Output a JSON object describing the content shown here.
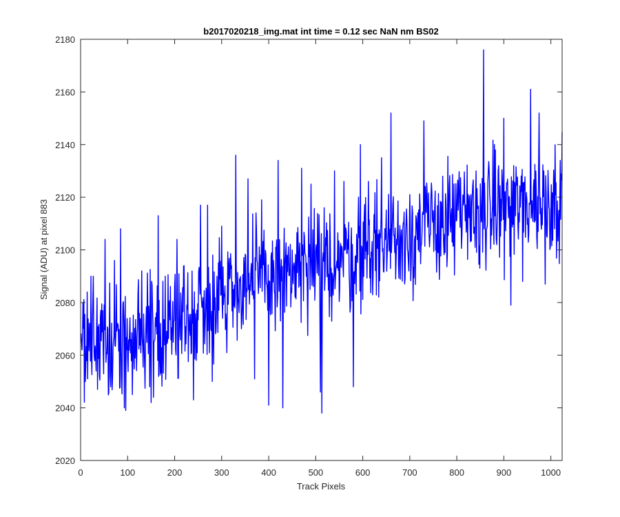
{
  "chart_data": {
    "type": "line",
    "title": "b2017020218_img.mat int time = 0.12 sec  NaN nm BS02",
    "xlabel": "Track Pixels",
    "ylabel": "Signal (ADU) at pixel 883",
    "xlim": [
      0,
      1024
    ],
    "ylim": [
      2020,
      2180
    ],
    "xticks": [
      0,
      100,
      200,
      300,
      400,
      500,
      600,
      700,
      800,
      900,
      1000
    ],
    "yticks": [
      2020,
      2040,
      2060,
      2080,
      2100,
      2120,
      2140,
      2160,
      2180
    ],
    "xtick_labels": [
      "0",
      "100",
      "200",
      "300",
      "400",
      "500",
      "600",
      "700",
      "800",
      "900",
      "1000"
    ],
    "ytick_labels": [
      "2020",
      "2040",
      "2060",
      "2080",
      "2100",
      "2120",
      "2140",
      "2160",
      "2180"
    ],
    "grid": false,
    "line_color": "#0000ff",
    "series": [
      {
        "x_start": 1,
        "x_step": 1,
        "count": 1024,
        "trend": [
          [
            1,
            2065
          ],
          [
            100,
            2066
          ],
          [
            200,
            2071
          ],
          [
            300,
            2084
          ],
          [
            400,
            2090
          ],
          [
            500,
            2092
          ],
          [
            600,
            2100
          ],
          [
            700,
            2106
          ],
          [
            800,
            2112
          ],
          [
            900,
            2116
          ],
          [
            1024,
            2120
          ]
        ],
        "noise_amplitude": 12,
        "spikes": [
          [
            14,
            2084
          ],
          [
            22,
            2090
          ],
          [
            27,
            2090
          ],
          [
            36,
            2047
          ],
          [
            52,
            2104
          ],
          [
            64,
            2048
          ],
          [
            72,
            2096
          ],
          [
            85,
            2108
          ],
          [
            93,
            2040
          ],
          [
            96,
            2039
          ],
          [
            110,
            2045
          ],
          [
            130,
            2092
          ],
          [
            150,
            2042
          ],
          [
            155,
            2044
          ],
          [
            165,
            2113
          ],
          [
            180,
            2090
          ],
          [
            200,
            2086
          ],
          [
            205,
            2104
          ],
          [
            220,
            2094
          ],
          [
            240,
            2043
          ],
          [
            255,
            2117
          ],
          [
            270,
            2117
          ],
          [
            280,
            2050
          ],
          [
            300,
            2109
          ],
          [
            330,
            2136
          ],
          [
            356,
            2127
          ],
          [
            370,
            2051
          ],
          [
            385,
            2119
          ],
          [
            400,
            2041
          ],
          [
            420,
            2134
          ],
          [
            430,
            2040
          ],
          [
            450,
            2100
          ],
          [
            470,
            2131
          ],
          [
            490,
            2125
          ],
          [
            510,
            2046
          ],
          [
            513,
            2038
          ],
          [
            540,
            2130
          ],
          [
            560,
            2126
          ],
          [
            580,
            2048
          ],
          [
            595,
            2140
          ],
          [
            612,
            2126
          ],
          [
            640,
            2135
          ],
          [
            660,
            2152
          ],
          [
            700,
            2121
          ],
          [
            730,
            2149
          ],
          [
            770,
            2128
          ],
          [
            830,
            2121
          ],
          [
            857,
            2176
          ],
          [
            880,
            2140
          ],
          [
            900,
            2150
          ],
          [
            915,
            2079
          ],
          [
            940,
            2088
          ],
          [
            957,
            2161
          ],
          [
            975,
            2152
          ],
          [
            988,
            2087
          ],
          [
            1010,
            2121
          ],
          [
            1020,
            2134
          ]
        ]
      }
    ]
  }
}
